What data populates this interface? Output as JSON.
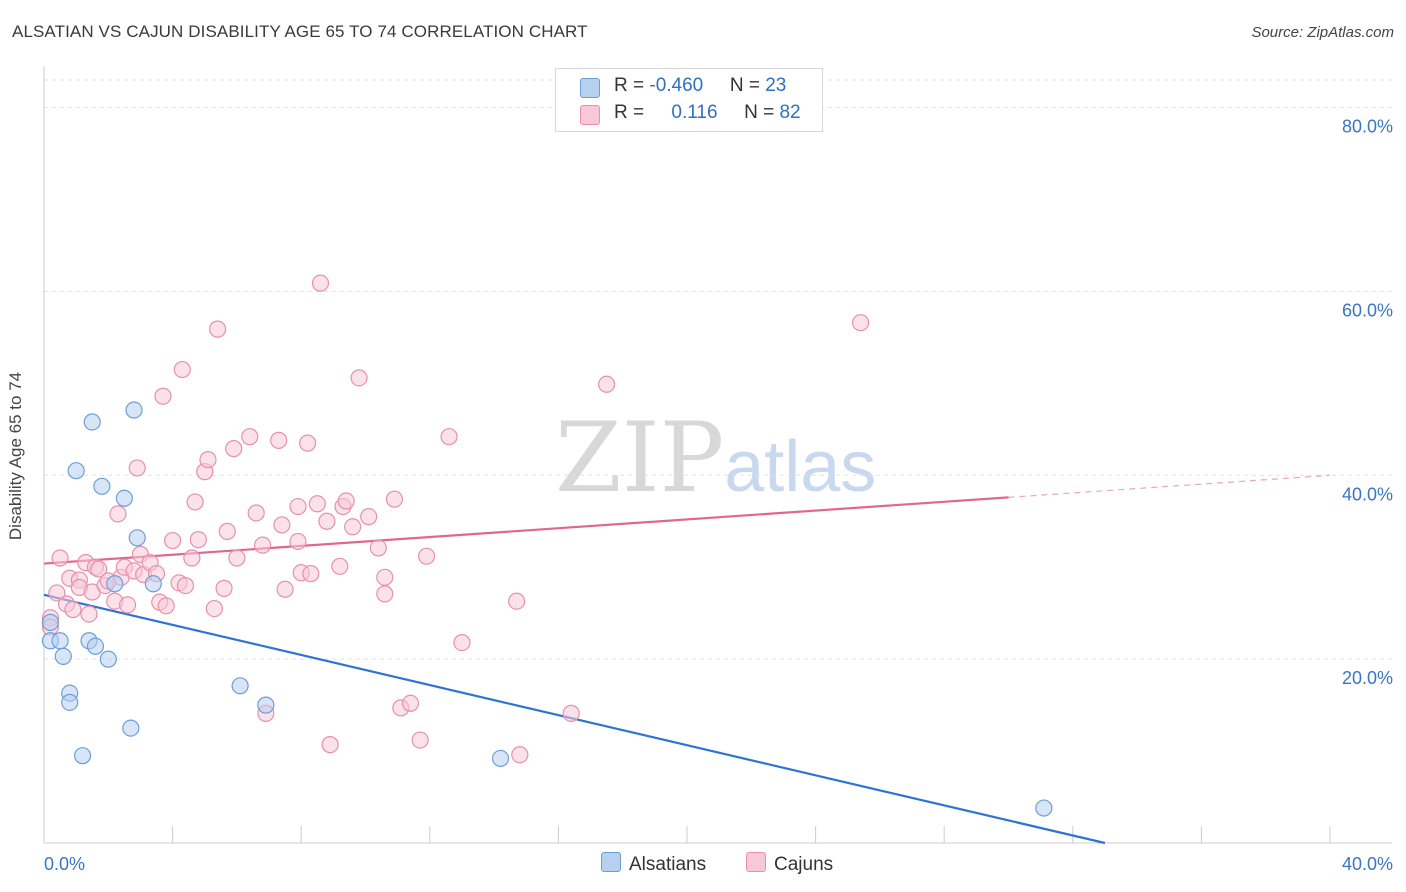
{
  "title": "ALSATIAN VS CAJUN DISABILITY AGE 65 TO 74 CORRELATION CHART",
  "source": "Source: ZipAtlas.com",
  "watermark": {
    "zip": "ZIP",
    "atlas": "atlas"
  },
  "legend_top": {
    "rows": [
      {
        "r_label": "R = ",
        "r_value": "-0.460",
        "n_label": "N = ",
        "n_value": "23"
      },
      {
        "r_label": "R = ",
        "r_value": "0.116",
        "n_label": "N = ",
        "n_value": "82"
      }
    ]
  },
  "legend_bottom": {
    "alsatians": "Alsatians",
    "cajuns": "Cajuns"
  },
  "colors": {
    "blue_fill": "#b8d0f0",
    "blue_stroke": "#6c9fd8",
    "blue_line": "#2e74d0",
    "pink_fill": "#f8c8d8",
    "pink_stroke": "#e890aa",
    "pink_line": "#e06890",
    "axis_label": "#3a75c4"
  },
  "chart_data": {
    "type": "scatter",
    "title": "ALSATIAN VS CAJUN DISABILITY AGE 65 TO 74 CORRELATION CHART",
    "xlabel": "",
    "ylabel": "Disability Age 65 to 74",
    "xlim": [
      0,
      40
    ],
    "ylim": [
      0,
      83
    ],
    "x_tick_labels": [
      "0.0%",
      "40.0%"
    ],
    "y_ticks": [
      20,
      40,
      60,
      80
    ],
    "y_tick_labels": [
      "20.0%",
      "40.0%",
      "60.0%",
      "80.0%"
    ],
    "series": [
      {
        "name": "Alsatians",
        "r": -0.46,
        "n": 23,
        "trend": {
          "x0": 0,
          "y0": 27.0,
          "x1": 33,
          "y1": 0,
          "dashed_from": null
        },
        "points": [
          [
            0.2,
            24.0
          ],
          [
            0.2,
            22.0
          ],
          [
            0.5,
            22.0
          ],
          [
            0.6,
            20.3
          ],
          [
            0.8,
            16.3
          ],
          [
            0.8,
            15.3
          ],
          [
            1.0,
            40.5
          ],
          [
            1.2,
            9.5
          ],
          [
            1.4,
            22.0
          ],
          [
            1.5,
            45.8
          ],
          [
            1.6,
            21.4
          ],
          [
            1.8,
            38.8
          ],
          [
            2.0,
            20.0
          ],
          [
            2.2,
            28.2
          ],
          [
            2.5,
            37.5
          ],
          [
            2.7,
            12.5
          ],
          [
            2.8,
            47.1
          ],
          [
            2.9,
            33.2
          ],
          [
            3.4,
            28.2
          ],
          [
            6.1,
            17.1
          ],
          [
            6.9,
            15.0
          ],
          [
            14.2,
            9.2
          ],
          [
            31.1,
            3.8
          ]
        ]
      },
      {
        "name": "Cajuns",
        "r": 0.116,
        "n": 82,
        "trend": {
          "x0": 0,
          "y0": 30.4,
          "x1": 40,
          "y1": 40.0,
          "dashed_from": 30.0
        },
        "points": [
          [
            0.2,
            24.5
          ],
          [
            0.2,
            23.5
          ],
          [
            0.4,
            27.2
          ],
          [
            0.5,
            31.0
          ],
          [
            0.7,
            26.0
          ],
          [
            0.8,
            28.8
          ],
          [
            0.9,
            25.4
          ],
          [
            1.1,
            28.6
          ],
          [
            1.1,
            27.8
          ],
          [
            1.3,
            30.5
          ],
          [
            1.4,
            24.9
          ],
          [
            1.5,
            27.3
          ],
          [
            1.6,
            30.0
          ],
          [
            1.7,
            29.8
          ],
          [
            1.9,
            28.0
          ],
          [
            2.0,
            28.5
          ],
          [
            2.2,
            26.3
          ],
          [
            2.3,
            35.8
          ],
          [
            2.4,
            28.9
          ],
          [
            2.5,
            30.0
          ],
          [
            2.6,
            25.9
          ],
          [
            2.8,
            29.6
          ],
          [
            2.9,
            40.8
          ],
          [
            3.0,
            31.4
          ],
          [
            3.1,
            29.2
          ],
          [
            3.3,
            30.5
          ],
          [
            3.5,
            29.3
          ],
          [
            3.6,
            26.2
          ],
          [
            3.7,
            48.6
          ],
          [
            3.8,
            25.8
          ],
          [
            4.0,
            32.9
          ],
          [
            4.2,
            28.3
          ],
          [
            4.3,
            51.5
          ],
          [
            4.4,
            28.0
          ],
          [
            4.6,
            31.0
          ],
          [
            4.7,
            37.1
          ],
          [
            4.8,
            33.0
          ],
          [
            5.0,
            40.4
          ],
          [
            5.1,
            41.7
          ],
          [
            5.3,
            25.5
          ],
          [
            5.4,
            55.9
          ],
          [
            5.6,
            27.7
          ],
          [
            5.7,
            33.9
          ],
          [
            5.9,
            42.9
          ],
          [
            6.0,
            31.0
          ],
          [
            6.4,
            44.2
          ],
          [
            6.6,
            35.9
          ],
          [
            6.8,
            32.4
          ],
          [
            6.9,
            14.1
          ],
          [
            7.3,
            43.8
          ],
          [
            7.4,
            34.6
          ],
          [
            7.5,
            27.6
          ],
          [
            7.9,
            36.6
          ],
          [
            7.9,
            32.8
          ],
          [
            8.0,
            29.4
          ],
          [
            8.2,
            43.5
          ],
          [
            8.3,
            29.3
          ],
          [
            8.5,
            36.9
          ],
          [
            8.6,
            60.9
          ],
          [
            8.8,
            35.0
          ],
          [
            8.9,
            10.7
          ],
          [
            9.2,
            30.1
          ],
          [
            9.3,
            36.6
          ],
          [
            9.4,
            37.2
          ],
          [
            9.6,
            34.4
          ],
          [
            9.8,
            50.6
          ],
          [
            10.1,
            35.5
          ],
          [
            10.4,
            32.1
          ],
          [
            10.6,
            28.9
          ],
          [
            10.6,
            27.1
          ],
          [
            10.9,
            37.4
          ],
          [
            11.1,
            14.7
          ],
          [
            11.4,
            15.2
          ],
          [
            11.7,
            11.2
          ],
          [
            11.9,
            31.2
          ],
          [
            12.6,
            44.2
          ],
          [
            13.0,
            21.8
          ],
          [
            14.7,
            26.3
          ],
          [
            14.8,
            9.6
          ],
          [
            16.4,
            14.1
          ],
          [
            17.5,
            49.9
          ],
          [
            25.4,
            56.6
          ]
        ]
      }
    ]
  }
}
